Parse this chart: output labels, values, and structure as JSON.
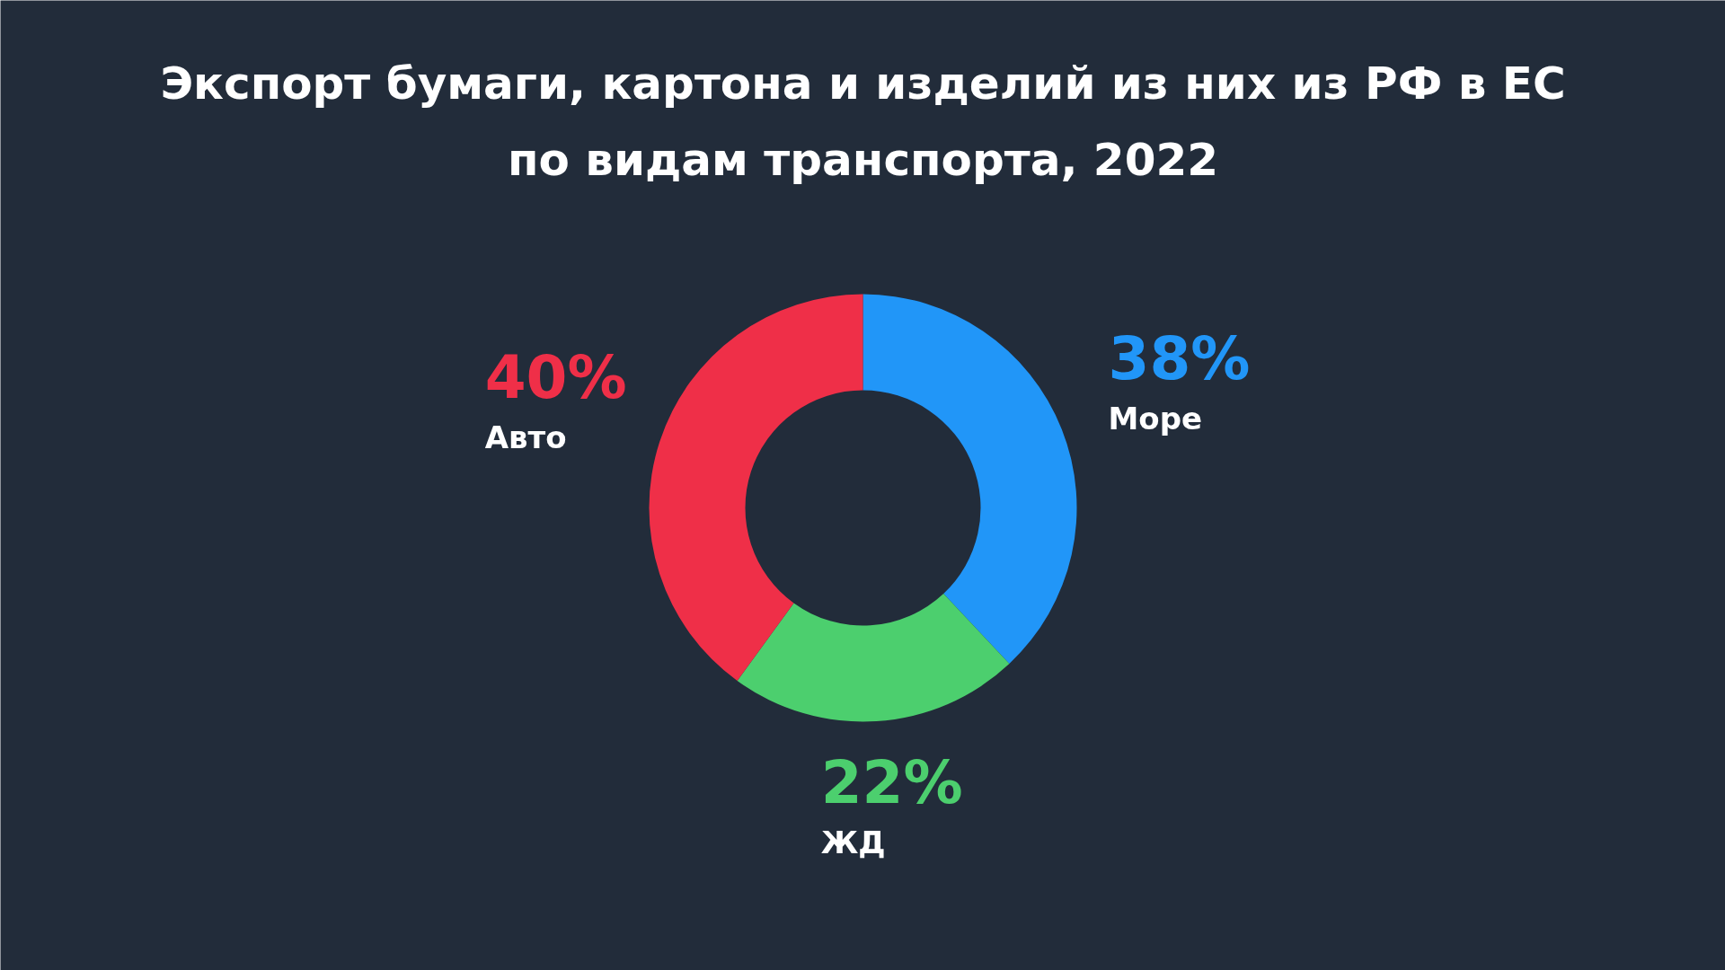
{
  "chart_data": {
    "type": "donut",
    "title": "Экспорт бумаги, картона и изделий из них из РФ в ЕС\nпо видам транспорта, 2022",
    "categories": [
      "Море",
      "ЖД",
      "Авто"
    ],
    "values": [
      38,
      22,
      40
    ],
    "colors": [
      "#2196f8",
      "#4ccf6e",
      "#ef2f48"
    ],
    "value_labels": [
      "38%",
      "22%",
      "40%"
    ]
  }
}
